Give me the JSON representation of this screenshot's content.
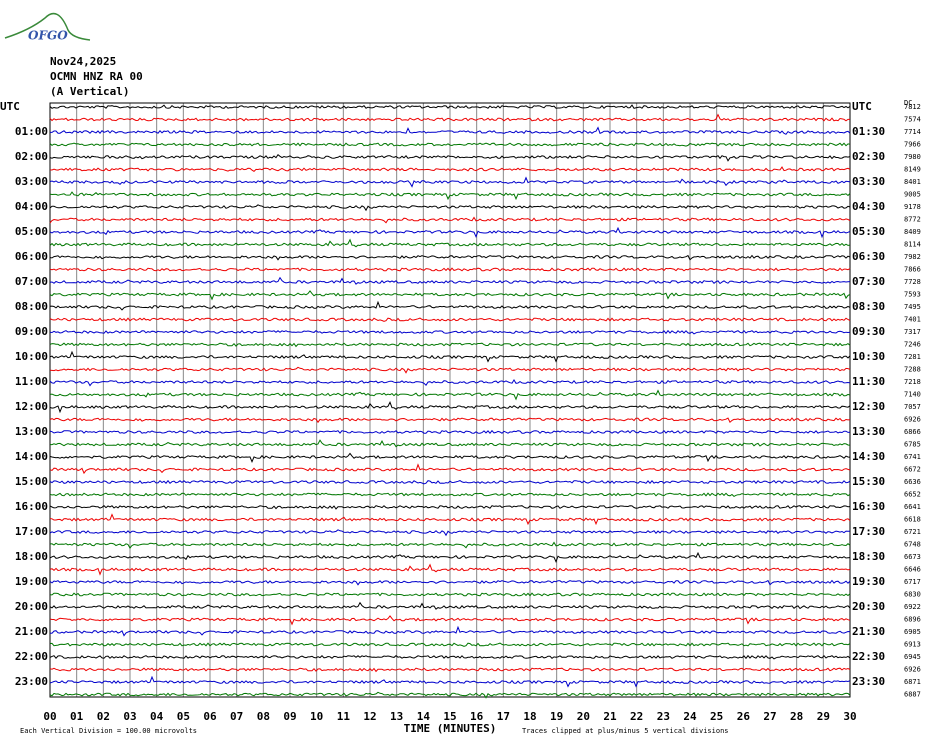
{
  "header": {
    "logo": "OFGO",
    "date": "Nov24,2025",
    "station": "OCMN HNZ RA 00",
    "component": "(A Vertical)"
  },
  "left_labels": [
    "UTC",
    "01:00",
    "02:00",
    "03:00",
    "04:00",
    "05:00",
    "06:00",
    "07:00",
    "08:00",
    "09:00",
    "10:00",
    "11:00",
    "12:00",
    "13:00",
    "14:00",
    "15:00",
    "16:00",
    "17:00",
    "18:00",
    "19:00",
    "20:00",
    "21:00",
    "22:00",
    "23:00"
  ],
  "right_labels": [
    "UTC",
    "01:30",
    "02:30",
    "03:30",
    "04:30",
    "05:30",
    "06:30",
    "07:30",
    "08:30",
    "09:30",
    "10:30",
    "11:30",
    "12:30",
    "13:30",
    "14:30",
    "15:30",
    "16:30",
    "17:30",
    "18:30",
    "19:30",
    "20:30",
    "21:30",
    "22:30",
    "23:30"
  ],
  "dc_label": "DC",
  "dc_offsets": [
    7812,
    7574,
    7714,
    7966,
    7980,
    8149,
    8401,
    9005,
    9178,
    8772,
    8409,
    8114,
    7982,
    7866,
    7728,
    7593,
    7495,
    7401,
    7317,
    7246,
    7281,
    7288,
    7218,
    7140,
    7057,
    6926,
    6866,
    6785,
    6741,
    6672,
    6636,
    6652,
    6641,
    6618,
    6721,
    6748,
    6673,
    6646,
    6717,
    6830,
    6922,
    6896,
    6905,
    6913,
    6945,
    6926,
    6871,
    6887
  ],
  "x_ticks": [
    "00",
    "01",
    "02",
    "03",
    "04",
    "05",
    "06",
    "07",
    "08",
    "09",
    "10",
    "11",
    "12",
    "13",
    "14",
    "15",
    "16",
    "17",
    "18",
    "19",
    "20",
    "21",
    "22",
    "23",
    "24",
    "25",
    "26",
    "27",
    "28",
    "29",
    "30"
  ],
  "x_label": "TIME (MINUTES)",
  "footer": {
    "scale": "Each Vertical Division =  100.00 microvolts",
    "clip": "Traces clipped at plus/minus 5 vertical divisions"
  }
}
